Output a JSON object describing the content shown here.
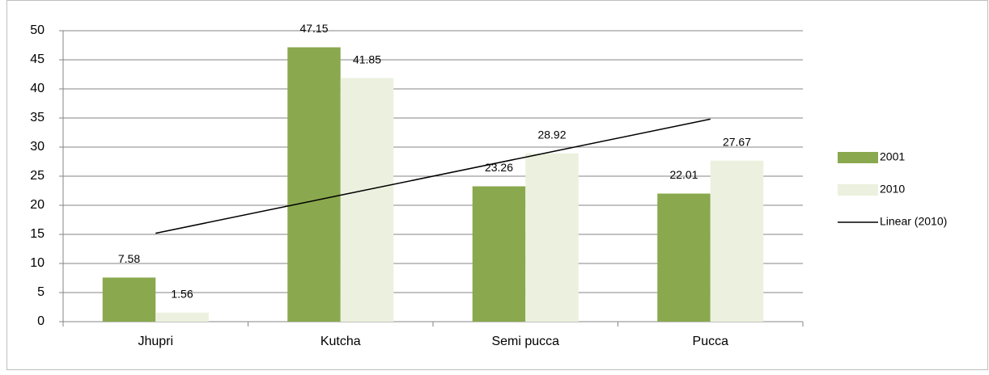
{
  "chart_data": {
    "type": "bar",
    "categories": [
      "Jhupri",
      "Kutcha",
      "Semi pucca",
      "Pucca"
    ],
    "series": [
      {
        "name": "2001",
        "color": "#8aa84e",
        "values": [
          7.58,
          47.15,
          23.26,
          22.01
        ]
      },
      {
        "name": "2010",
        "color": "#ebf1de",
        "values": [
          1.56,
          41.85,
          28.92,
          27.67
        ]
      },
      {
        "name": "Linear (2010)",
        "type": "line",
        "color": "#000000",
        "values": [
          15.19,
          21.73,
          28.27,
          34.81
        ]
      }
    ],
    "ylim": [
      0,
      50
    ],
    "yticks": [
      0,
      5,
      10,
      15,
      20,
      25,
      30,
      35,
      40,
      45,
      50
    ],
    "grid": true,
    "legend": "right",
    "data_labels": true
  }
}
